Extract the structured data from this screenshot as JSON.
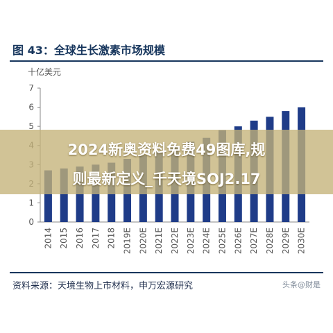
{
  "figure": {
    "title": "图 43：全球生长激素市场规模",
    "source": "资料来源：天境生物上市材料，申万宏源研究",
    "watermark": "头条@财是"
  },
  "overlay": {
    "line1": "2024新奥资料免费49图库,规",
    "line2": "则最新定义_千天境SOJ2.17",
    "color": "#c4b278"
  },
  "chart_data": {
    "type": "bar",
    "title": "图 43：全球生长激素市场规模",
    "unit_label": "十亿美元",
    "xlabel": "",
    "ylabel": "十亿美元",
    "ylim": [
      0,
      7
    ],
    "yticks": [
      0,
      1,
      2,
      3,
      4,
      5,
      6,
      7
    ],
    "grid": false,
    "categories": [
      "2014",
      "2015",
      "2016",
      "2017",
      "2018",
      "2019E",
      "2020E",
      "2021E",
      "2022E",
      "2023E",
      "2024E",
      "2025E",
      "2026E",
      "2027E",
      "2028E",
      "2029E",
      "2030E"
    ],
    "values": [
      2.7,
      2.8,
      2.9,
      3.0,
      3.1,
      3.3,
      3.5,
      3.7,
      3.9,
      4.2,
      4.4,
      4.8,
      5.0,
      5.3,
      5.5,
      5.8,
      6.0
    ],
    "bar_color": "#1f3c88"
  }
}
